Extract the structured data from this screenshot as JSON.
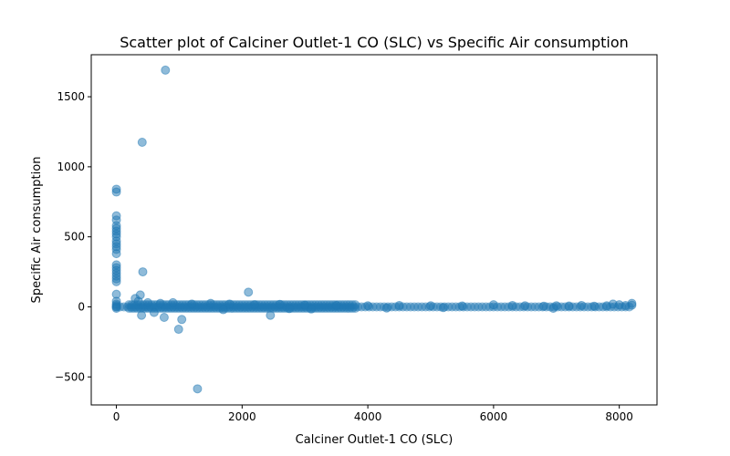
{
  "chart_data": {
    "type": "scatter",
    "title": "Scatter plot of Calciner Outlet-1 CO (SLC) vs Specific Air consumption",
    "xlabel": "Calciner Outlet-1 CO (SLC)",
    "ylabel": "Specific Air consumption",
    "xlim": [
      -400,
      8600
    ],
    "ylim": [
      -700,
      1800
    ],
    "xticks": [
      0,
      2000,
      4000,
      6000,
      8000
    ],
    "yticks": [
      -500,
      0,
      500,
      1000,
      1500
    ],
    "xtick_labels": [
      "0",
      "2000",
      "4000",
      "6000",
      "8000"
    ],
    "ytick_labels": [
      "−500",
      "0",
      "500",
      "1000",
      "1500"
    ],
    "grid": false,
    "color": "#1f77b4",
    "alpha": 0.5,
    "series": [
      {
        "points": [
          [
            0,
            840
          ],
          [
            0,
            820
          ],
          [
            0,
            650
          ],
          [
            0,
            620
          ],
          [
            0,
            580
          ],
          [
            0,
            560
          ],
          [
            0,
            540
          ],
          [
            0,
            520
          ],
          [
            0,
            500
          ],
          [
            0,
            470
          ],
          [
            0,
            450
          ],
          [
            0,
            430
          ],
          [
            0,
            410
          ],
          [
            0,
            380
          ],
          [
            0,
            300
          ],
          [
            0,
            280
          ],
          [
            0,
            260
          ],
          [
            0,
            240
          ],
          [
            0,
            220
          ],
          [
            0,
            200
          ],
          [
            0,
            180
          ],
          [
            0,
            90
          ],
          [
            0,
            40
          ],
          [
            0,
            20
          ],
          [
            0,
            10
          ],
          [
            0,
            0
          ],
          [
            0,
            -10
          ],
          [
            780,
            1690
          ],
          [
            410,
            1175
          ],
          [
            420,
            250
          ],
          [
            2100,
            105
          ],
          [
            1290,
            -585
          ],
          [
            990,
            -160
          ],
          [
            1040,
            -90
          ],
          [
            760,
            -75
          ],
          [
            400,
            -60
          ],
          [
            2450,
            -60
          ],
          [
            600,
            -40
          ],
          [
            380,
            85
          ],
          [
            300,
            60
          ],
          [
            350,
            40
          ],
          [
            500,
            30
          ],
          [
            700,
            25
          ],
          [
            900,
            30
          ],
          [
            1200,
            20
          ],
          [
            1500,
            25
          ],
          [
            1800,
            20
          ],
          [
            2200,
            15
          ],
          [
            2600,
            18
          ],
          [
            3000,
            12
          ],
          [
            3500,
            10
          ],
          [
            4000,
            8
          ],
          [
            4500,
            10
          ],
          [
            5000,
            8
          ],
          [
            5500,
            6
          ],
          [
            6000,
            15
          ],
          [
            6300,
            10
          ],
          [
            6500,
            8
          ],
          [
            6800,
            5
          ],
          [
            7000,
            8
          ],
          [
            7200,
            6
          ],
          [
            7400,
            10
          ],
          [
            7600,
            5
          ],
          [
            7800,
            8
          ],
          [
            7900,
            20
          ],
          [
            8000,
            15
          ],
          [
            8100,
            10
          ],
          [
            8200,
            12
          ],
          [
            8200,
            25
          ],
          [
            6950,
            -10
          ],
          [
            5200,
            -5
          ],
          [
            3100,
            -15
          ],
          [
            2750,
            -12
          ],
          [
            4300,
            -8
          ],
          [
            1700,
            -20
          ]
        ]
      }
    ]
  }
}
